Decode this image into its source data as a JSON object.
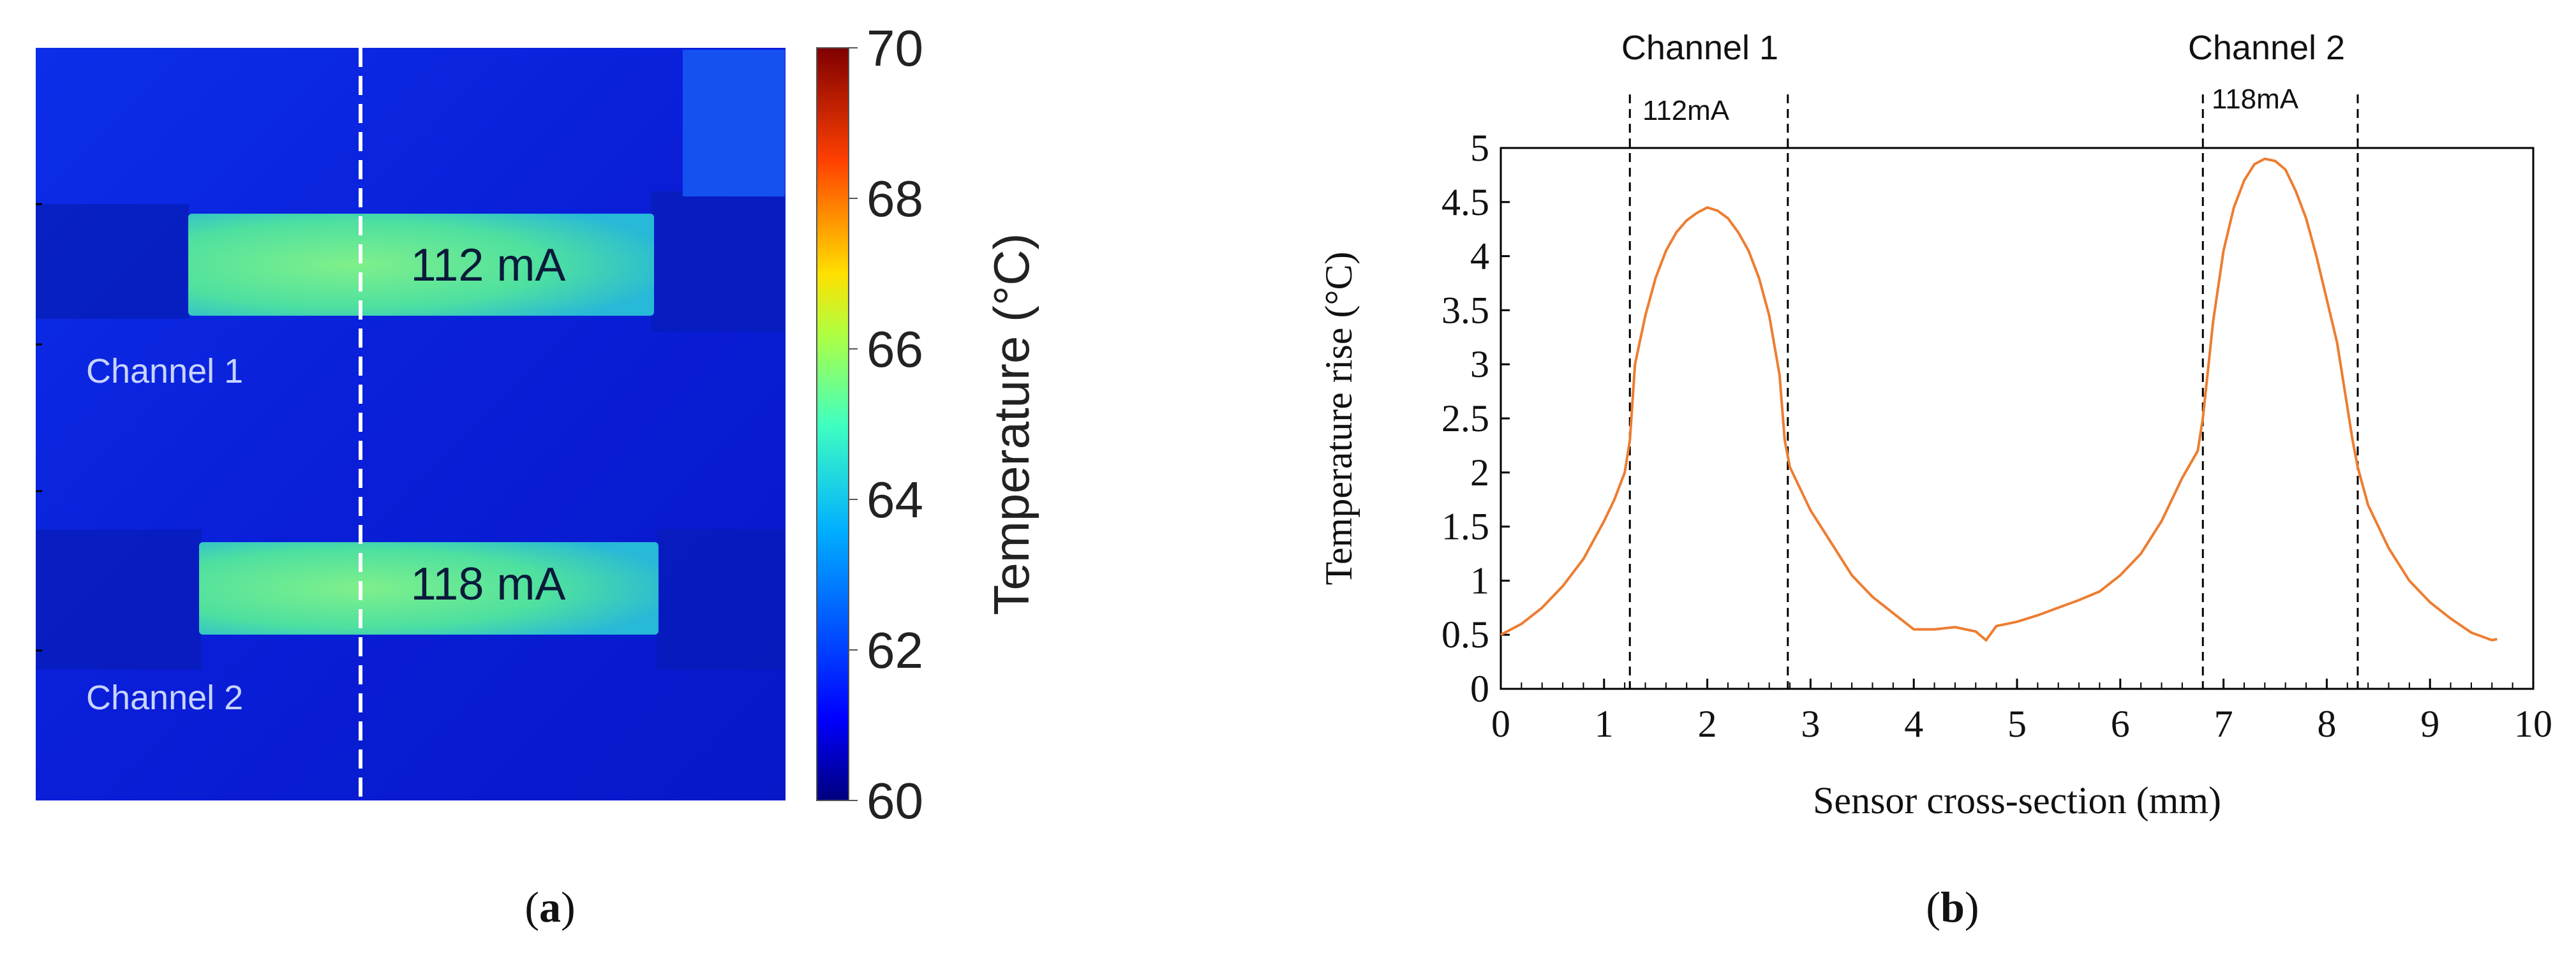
{
  "panel_a": {
    "label": "(a)",
    "label_letter": "a",
    "channel1_label": "Channel 1",
    "channel2_label": "Channel 2",
    "strip1_label": "112 mA",
    "strip2_label": "118 mA",
    "colors": {
      "background": "#0a1fe0",
      "strip": "#3fe0a8",
      "strip_core": "#6ef090"
    }
  },
  "colorbar": {
    "title": "Temperature (°C)",
    "min": 60,
    "max": 70,
    "ticks": [
      "60",
      "62",
      "64",
      "66",
      "68",
      "70"
    ],
    "colors": [
      "#00007f",
      "#0000ff",
      "#007fff",
      "#00ffff",
      "#7fff7f",
      "#ffff00",
      "#ff7f00",
      "#ff0000",
      "#7f0000"
    ]
  },
  "panel_b": {
    "label": "(b)",
    "label_letter": "b",
    "channel1_label": "Channel 1",
    "channel2_label": "Channel 2",
    "current1_label": "112mA",
    "current2_label": "118mA"
  },
  "chart_data": {
    "type": "line",
    "xlabel": "Sensor cross-section (mm)",
    "ylabel": "Temperature rise (°C)",
    "xlim": [
      0,
      10
    ],
    "ylim": [
      0,
      5
    ],
    "xticks": [
      "0",
      "1",
      "2",
      "3",
      "4",
      "5",
      "6",
      "7",
      "8",
      "9",
      "10"
    ],
    "yticks": [
      "0",
      "0.5",
      "1",
      "1.5",
      "2",
      "2.5",
      "3",
      "3.5",
      "4",
      "4.5",
      "5"
    ],
    "grid": false,
    "line_color": "#ed7d31",
    "channel_bounds": [
      1.25,
      2.78,
      6.8,
      8.3
    ],
    "series": [
      {
        "x": [
          0,
          0.2,
          0.4,
          0.6,
          0.8,
          1.0,
          1.1,
          1.2,
          1.25,
          1.3,
          1.4,
          1.5,
          1.6,
          1.7,
          1.8,
          1.9,
          2.0,
          2.1,
          2.2,
          2.3,
          2.4,
          2.5,
          2.6,
          2.7,
          2.75,
          2.8,
          2.9,
          3.0,
          3.2,
          3.4,
          3.6,
          3.8,
          4.0,
          4.2,
          4.4,
          4.6,
          4.7,
          4.8,
          5.0,
          5.2,
          5.4,
          5.6,
          5.8,
          6.0,
          6.2,
          6.4,
          6.6,
          6.75,
          6.8,
          6.9,
          7.0,
          7.1,
          7.2,
          7.3,
          7.4,
          7.5,
          7.6,
          7.7,
          7.8,
          7.9,
          8.0,
          8.1,
          8.2,
          8.25,
          8.3,
          8.4,
          8.6,
          8.8,
          9.0,
          9.2,
          9.4,
          9.6,
          9.65
        ],
        "y": [
          0.5,
          0.6,
          0.75,
          0.95,
          1.2,
          1.55,
          1.75,
          2.0,
          2.3,
          3.0,
          3.45,
          3.8,
          4.05,
          4.22,
          4.33,
          4.4,
          4.45,
          4.42,
          4.35,
          4.22,
          4.05,
          3.8,
          3.45,
          2.9,
          2.3,
          2.05,
          1.85,
          1.65,
          1.35,
          1.05,
          0.85,
          0.7,
          0.55,
          0.55,
          0.57,
          0.53,
          0.45,
          0.58,
          0.62,
          0.68,
          0.75,
          0.82,
          0.9,
          1.05,
          1.25,
          1.55,
          1.95,
          2.2,
          2.5,
          3.4,
          4.05,
          4.45,
          4.7,
          4.85,
          4.9,
          4.88,
          4.8,
          4.6,
          4.35,
          4.0,
          3.6,
          3.2,
          2.6,
          2.3,
          2.05,
          1.7,
          1.3,
          1.0,
          0.8,
          0.65,
          0.52,
          0.45,
          0.46
        ]
      }
    ]
  }
}
